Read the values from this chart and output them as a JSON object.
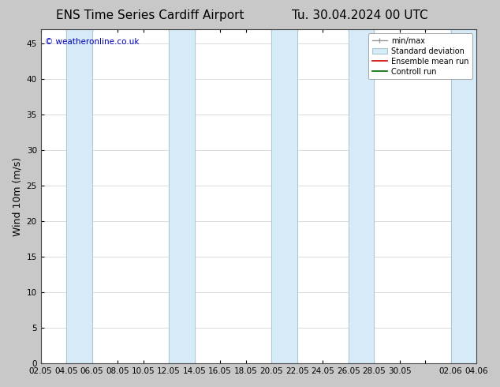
{
  "title_left": "ENS Time Series Cardiff Airport",
  "title_right": "Tu. 30.04.2024 00 UTC",
  "ylabel": "Wind 10m (m/s)",
  "watermark": "© weatheronline.co.uk",
  "watermark_color": "#0000bb",
  "xlim_start": 0,
  "xlim_end": 34,
  "ylim": [
    0,
    47
  ],
  "yticks": [
    0,
    5,
    10,
    15,
    20,
    25,
    30,
    35,
    40,
    45
  ],
  "xtick_labels": [
    "02.05",
    "04.05",
    "06.05",
    "08.05",
    "10.05",
    "12.05",
    "14.05",
    "16.05",
    "18.05",
    "20.05",
    "22.05",
    "24.05",
    "26.05",
    "28.05",
    "30.05",
    "",
    "02.06",
    "04.06"
  ],
  "xtick_positions": [
    0,
    2,
    4,
    6,
    8,
    10,
    12,
    14,
    16,
    18,
    20,
    22,
    24,
    26,
    28,
    30,
    32,
    34
  ],
  "shaded_bands": [
    [
      2,
      4
    ],
    [
      10,
      12
    ],
    [
      18,
      20
    ],
    [
      24,
      26
    ],
    [
      32,
      34
    ]
  ],
  "band_color": "#d6eaf8",
  "band_edge_color": "#aec6cf",
  "background_color": "#c8c8c8",
  "plot_bg_color": "#ffffff",
  "title_fontsize": 11,
  "axis_fontsize": 9,
  "tick_fontsize": 7.5
}
